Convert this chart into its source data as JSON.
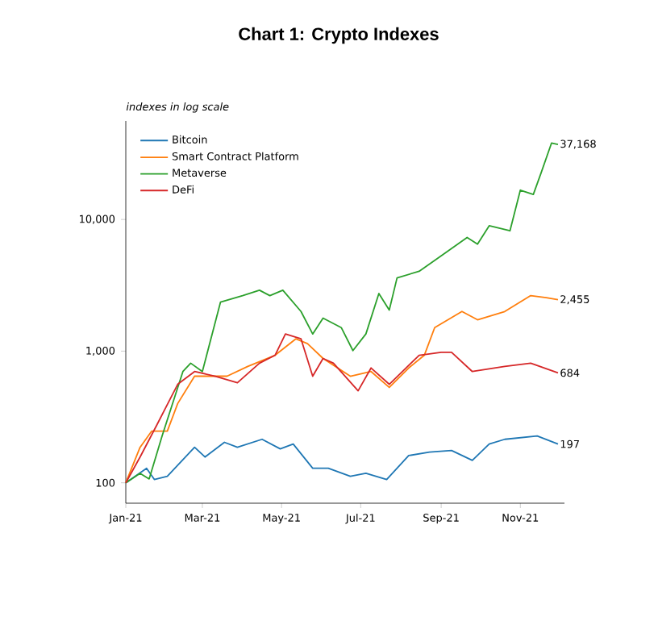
{
  "chart_data": {
    "type": "line",
    "title": "Chart 1: Crypto Indexes",
    "ylabel": "indexes in log scale",
    "log": true,
    "legend": "top left",
    "xlim": [
      "2021-01-01",
      "2021-12-05"
    ],
    "ylim": [
      70,
      56000
    ],
    "xticks": [
      {
        "value": "2021-01-01",
        "label": "Jan-21"
      },
      {
        "value": "2021-03-01",
        "label": "Mar-21"
      },
      {
        "value": "2021-05-01",
        "label": "May-21"
      },
      {
        "value": "2021-07-01",
        "label": "Jul-21"
      },
      {
        "value": "2021-09-01",
        "label": "Sep-21"
      },
      {
        "value": "2021-11-01",
        "label": "Nov-21"
      }
    ],
    "yticks": [
      100,
      {
        "value": 1000,
        "label": "1,000"
      },
      {
        "value": 10000,
        "label": "10,000"
      }
    ],
    "series": [
      {
        "name": "Bitcoin",
        "color": "#1f77b4",
        "x": [
          "2021-01-01",
          "2021-01-17",
          "2021-01-23",
          "2021-02-02",
          "2021-02-23",
          "2021-03-03",
          "2021-03-18",
          "2021-03-28",
          "2021-04-16",
          "2021-04-30",
          "2021-05-10",
          "2021-05-25",
          "2021-06-06",
          "2021-06-23",
          "2021-07-05",
          "2021-07-21",
          "2021-08-07",
          "2021-08-23",
          "2021-09-09",
          "2021-09-25",
          "2021-10-08",
          "2021-10-20",
          "2021-11-14",
          "2021-11-30"
        ],
        "values": [
          100,
          129,
          106,
          112,
          186,
          157,
          203,
          186,
          214,
          181,
          197,
          129,
          129,
          112,
          118,
          106,
          161,
          171,
          176,
          148,
          197,
          214,
          227,
          197
        ]
      },
      {
        "name": "Smart Contract Platform",
        "color": "#ff7f0e",
        "x": [
          "2021-01-01",
          "2021-01-12",
          "2021-01-21",
          "2021-02-02",
          "2021-02-10",
          "2021-02-23",
          "2021-03-03",
          "2021-03-20",
          "2021-04-05",
          "2021-04-26",
          "2021-05-12",
          "2021-05-21",
          "2021-06-02",
          "2021-06-23",
          "2021-07-09",
          "2021-07-23",
          "2021-08-07",
          "2021-08-19",
          "2021-08-27",
          "2021-09-17",
          "2021-09-29",
          "2021-10-20",
          "2021-11-09",
          "2021-11-21",
          "2021-11-30"
        ],
        "values": [
          100,
          186,
          247,
          247,
          400,
          645,
          645,
          645,
          765,
          930,
          1240,
          1140,
          880,
          645,
          700,
          530,
          745,
          930,
          1510,
          2000,
          1730,
          2000,
          2640,
          2550,
          2455
        ]
      },
      {
        "name": "Metaverse",
        "color": "#2ca02c",
        "x": [
          "2021-01-01",
          "2021-01-12",
          "2021-01-19",
          "2021-01-29",
          "2021-02-14",
          "2021-02-20",
          "2021-03-01",
          "2021-03-15",
          "2021-04-01",
          "2021-04-14",
          "2021-04-22",
          "2021-05-02",
          "2021-05-16",
          "2021-05-25",
          "2021-06-02",
          "2021-06-16",
          "2021-06-25",
          "2021-07-05",
          "2021-07-15",
          "2021-07-23",
          "2021-07-29",
          "2021-08-15",
          "2021-09-01",
          "2021-09-21",
          "2021-09-29",
          "2021-10-08",
          "2021-10-24",
          "2021-11-01",
          "2021-11-11",
          "2021-11-17",
          "2021-11-25",
          "2021-11-30"
        ],
        "values": [
          100,
          118,
          107,
          227,
          700,
          810,
          700,
          2360,
          2640,
          2900,
          2640,
          2900,
          2000,
          1350,
          1780,
          1510,
          1010,
          1350,
          2740,
          2050,
          3600,
          4040,
          5300,
          7300,
          6500,
          8960,
          8200,
          16700,
          15500,
          22600,
          38000,
          37168
        ]
      },
      {
        "name": "DeFi",
        "color": "#d62728",
        "x": [
          "2021-01-01",
          "2021-01-12",
          "2021-01-25",
          "2021-02-10",
          "2021-02-23",
          "2021-03-11",
          "2021-03-28",
          "2021-04-14",
          "2021-04-26",
          "2021-05-04",
          "2021-05-16",
          "2021-05-25",
          "2021-06-02",
          "2021-06-10",
          "2021-06-29",
          "2021-07-09",
          "2021-07-23",
          "2021-08-15",
          "2021-09-01",
          "2021-09-09",
          "2021-09-25",
          "2021-10-20",
          "2021-11-09",
          "2021-11-30"
        ],
        "values": [
          100,
          157,
          276,
          560,
          700,
          645,
          575,
          810,
          930,
          1350,
          1240,
          645,
          880,
          810,
          500,
          745,
          560,
          930,
          980,
          980,
          700,
          765,
          810,
          684
        ]
      }
    ],
    "annotations": [
      {
        "text": "37,168",
        "x": "2021-11-30",
        "y": 37168
      },
      {
        "text": "2,455",
        "x": "2021-11-30",
        "y": 2455
      },
      {
        "text": "684",
        "x": "2021-11-30",
        "y": 684
      },
      {
        "text": "197",
        "x": "2021-11-30",
        "y": 197
      }
    ]
  }
}
